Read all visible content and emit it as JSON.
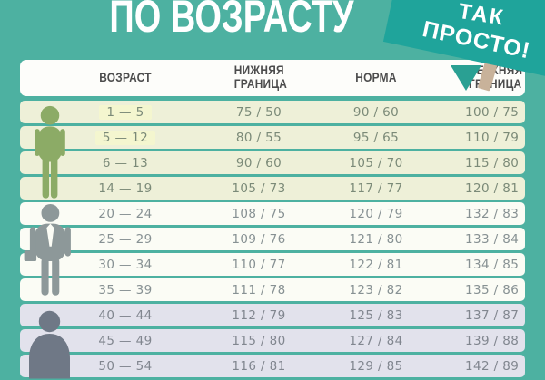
{
  "title": "ПО ВОЗРАСТУ",
  "badge": {
    "line1": "ТАК",
    "line2": "ПРОСТО!",
    "sign_color": "#1fa49b",
    "stick_color": "#c8b29a",
    "pointer_color": "#2aa093"
  },
  "colors": {
    "background": "#4db1a1",
    "header_bg": "#fdfdfa",
    "header_text": "#4c4c4c",
    "title_text": "#ffffff"
  },
  "table": {
    "headers": {
      "age": "ВОЗРАСТ",
      "lower": "НИЖНЯЯ\nГРАНИЦА",
      "norm": "НОРМА",
      "upper": "ВЕРХНЯЯ\nГРАНИЦА"
    },
    "groups": {
      "child": {
        "row_bg": "#eef0d8",
        "text_color": "#7b8a78",
        "figure_color": "#8cab66"
      },
      "adult": {
        "row_bg": "#fbfcf5",
        "text_color": "#879193",
        "figure_color": "#8d9899"
      },
      "senior": {
        "row_bg": "#e2e2ec",
        "text_color": "#81868f",
        "figure_color": "#6f7886"
      }
    },
    "rows": [
      {
        "age": "1 — 5",
        "lower": "75 / 50",
        "norm": "90 / 60",
        "upper": "100 / 75",
        "group": "child",
        "age_highlight": true
      },
      {
        "age": "5 — 12",
        "lower": "80 / 55",
        "norm": "95 / 65",
        "upper": "110 / 79",
        "group": "child",
        "age_highlight": true
      },
      {
        "age": "6 — 13",
        "lower": "90 / 60",
        "norm": "105 / 70",
        "upper": "115 / 80",
        "group": "child"
      },
      {
        "age": "14 — 19",
        "lower": "105 / 73",
        "norm": "117 / 77",
        "upper": "120 / 81",
        "group": "child"
      },
      {
        "age": "20 — 24",
        "lower": "108 / 75",
        "norm": "120 / 79",
        "upper": "132 / 83",
        "group": "adult"
      },
      {
        "age": "25 — 29",
        "lower": "109 / 76",
        "norm": "121 / 80",
        "upper": "133 / 84",
        "group": "adult"
      },
      {
        "age": "30 — 34",
        "lower": "110 / 77",
        "norm": "122 / 81",
        "upper": "134 / 85",
        "group": "adult"
      },
      {
        "age": "35 — 39",
        "lower": "111 / 78",
        "norm": "123 / 82",
        "upper": "135 / 86",
        "group": "adult"
      },
      {
        "age": "40 — 44",
        "lower": "112 / 79",
        "norm": "125 / 83",
        "upper": "137 / 87",
        "group": "senior"
      },
      {
        "age": "45 — 49",
        "lower": "115 / 80",
        "norm": "127 / 84",
        "upper": "139 / 88",
        "group": "senior"
      },
      {
        "age": "50 — 54",
        "lower": "116 / 81",
        "norm": "129 / 85",
        "upper": "142 / 89",
        "group": "senior"
      }
    ]
  },
  "chart_data": {
    "type": "table",
    "title": "ПО ВОЗРАСТУ",
    "columns": [
      "ВОЗРАСТ",
      "НИЖНЯЯ ГРАНИЦА",
      "НОРМА",
      "ВЕРХНЯЯ ГРАНИЦА"
    ],
    "rows": [
      [
        "1 — 5",
        "75 / 50",
        "90 / 60",
        "100 / 75"
      ],
      [
        "5 — 12",
        "80 / 55",
        "95 / 65",
        "110 / 79"
      ],
      [
        "6 — 13",
        "90 / 60",
        "105 / 70",
        "115 / 80"
      ],
      [
        "14 — 19",
        "105 / 73",
        "117 / 77",
        "120 / 81"
      ],
      [
        "20 — 24",
        "108 / 75",
        "120 / 79",
        "132 / 83"
      ],
      [
        "25 — 29",
        "109 / 76",
        "121 / 80",
        "133 / 84"
      ],
      [
        "30 — 34",
        "110 / 77",
        "122 / 81",
        "134 / 85"
      ],
      [
        "35 — 39",
        "111 / 78",
        "123 / 82",
        "135 / 86"
      ],
      [
        "40 — 44",
        "112 / 79",
        "125 / 83",
        "137 / 87"
      ],
      [
        "45 — 49",
        "115 / 80",
        "127 / 84",
        "139 / 88"
      ],
      [
        "50 — 54",
        "116 / 81",
        "129 / 85",
        "142 / 89"
      ]
    ]
  }
}
